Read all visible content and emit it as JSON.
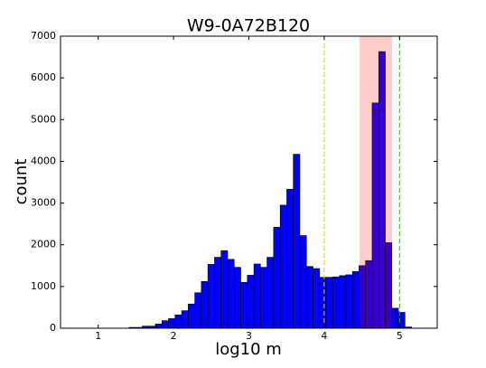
{
  "chart_data": {
    "type": "histogram",
    "title": "W9-0A72B120",
    "x_label": "log10 m",
    "y_label": "count",
    "bins": [
      1.41,
      1.497,
      1.584,
      1.672,
      1.759,
      1.846,
      1.933,
      2.02,
      2.108,
      2.195,
      2.282,
      2.369,
      2.456,
      2.544,
      2.631,
      2.718,
      2.805,
      2.892,
      2.98,
      3.067,
      3.154,
      3.241,
      3.328,
      3.416,
      3.503,
      3.59,
      3.677,
      3.764,
      3.852,
      3.939,
      4.026,
      4.113,
      4.2,
      4.288,
      4.375,
      4.462,
      4.549,
      4.636,
      4.724,
      4.811,
      4.898,
      4.985,
      5.072,
      5.16
    ],
    "values": [
      20,
      20,
      50,
      50,
      100,
      180,
      230,
      320,
      420,
      580,
      850,
      1120,
      1530,
      1700,
      1860,
      1650,
      1460,
      1100,
      1270,
      1540,
      1460,
      1700,
      2420,
      2950,
      3330,
      4170,
      2220,
      1480,
      1430,
      1220,
      1220,
      1230,
      1260,
      1280,
      1360,
      1500,
      1620,
      5400,
      6630,
      2050,
      480,
      380,
      30
    ],
    "color": "#0000ff",
    "xlim": [
      0.5,
      5.5
    ],
    "ylim": [
      0,
      7000
    ],
    "xticks": [
      1,
      2,
      3,
      4,
      5
    ],
    "yticks": [
      0,
      1000,
      2000,
      3000,
      4000,
      5000,
      6000,
      7000
    ],
    "spans": [
      {
        "x": [
          4.47,
          4.9
        ],
        "color": "#ff0000"
      }
    ],
    "vlines": [
      {
        "x": 4,
        "color": "#cccc33"
      },
      {
        "x": 5,
        "color": "#339933"
      }
    ],
    "grid": false
  }
}
